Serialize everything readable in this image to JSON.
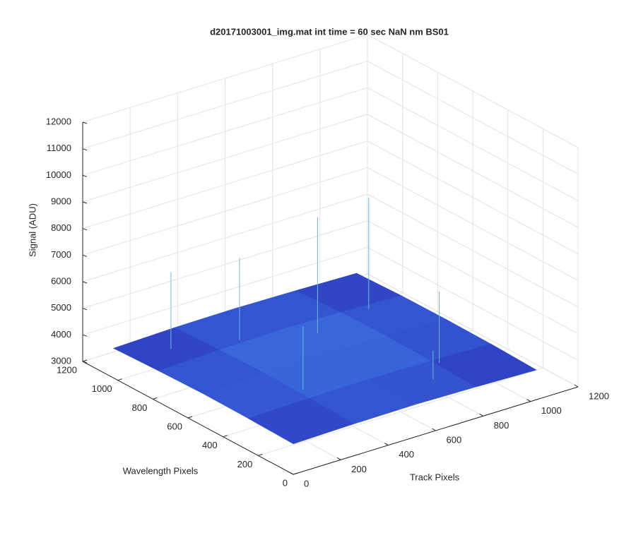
{
  "chart_data": {
    "type": "surface",
    "title": "d20171003001_img.mat int time = 60 sec  NaN nm BS01",
    "xlabel": "Track Pixels",
    "ylabel": "Wavelength Pixels",
    "zlabel": "Signal (ADU)",
    "xlim": [
      0,
      1200
    ],
    "ylim": [
      0,
      1200
    ],
    "zlim": [
      3000,
      12000
    ],
    "xticks": [
      0,
      200,
      400,
      600,
      800,
      1000,
      1200
    ],
    "yticks": [
      0,
      200,
      400,
      600,
      800,
      1000,
      1200
    ],
    "zticks": [
      3000,
      4000,
      5000,
      6000,
      7000,
      8000,
      9000,
      10000,
      11000,
      12000
    ],
    "grid": true,
    "x": [
      0,
      256,
      512,
      768,
      1024
    ],
    "y": [
      0,
      256,
      512,
      768,
      1024
    ],
    "z": [
      [
        4150,
        4200,
        4220,
        4180,
        4120
      ],
      [
        4200,
        4260,
        4280,
        4250,
        4180
      ],
      [
        4220,
        4300,
        4320,
        4290,
        4200
      ],
      [
        4180,
        4260,
        4300,
        4270,
        4190
      ],
      [
        4120,
        4190,
        4210,
        4180,
        4130
      ]
    ],
    "colors": [
      "#2a2fb8",
      "#3b6fe0"
    ],
    "spikes": {
      "x": [
        150,
        380,
        300,
        620,
        800,
        880,
        700
      ],
      "y": [
        900,
        820,
        350,
        700,
        250,
        760,
        150
      ],
      "z": [
        7000,
        7200,
        6500,
        8500,
        6800,
        8300,
        5200
      ],
      "color": "#6fb8d8"
    }
  }
}
